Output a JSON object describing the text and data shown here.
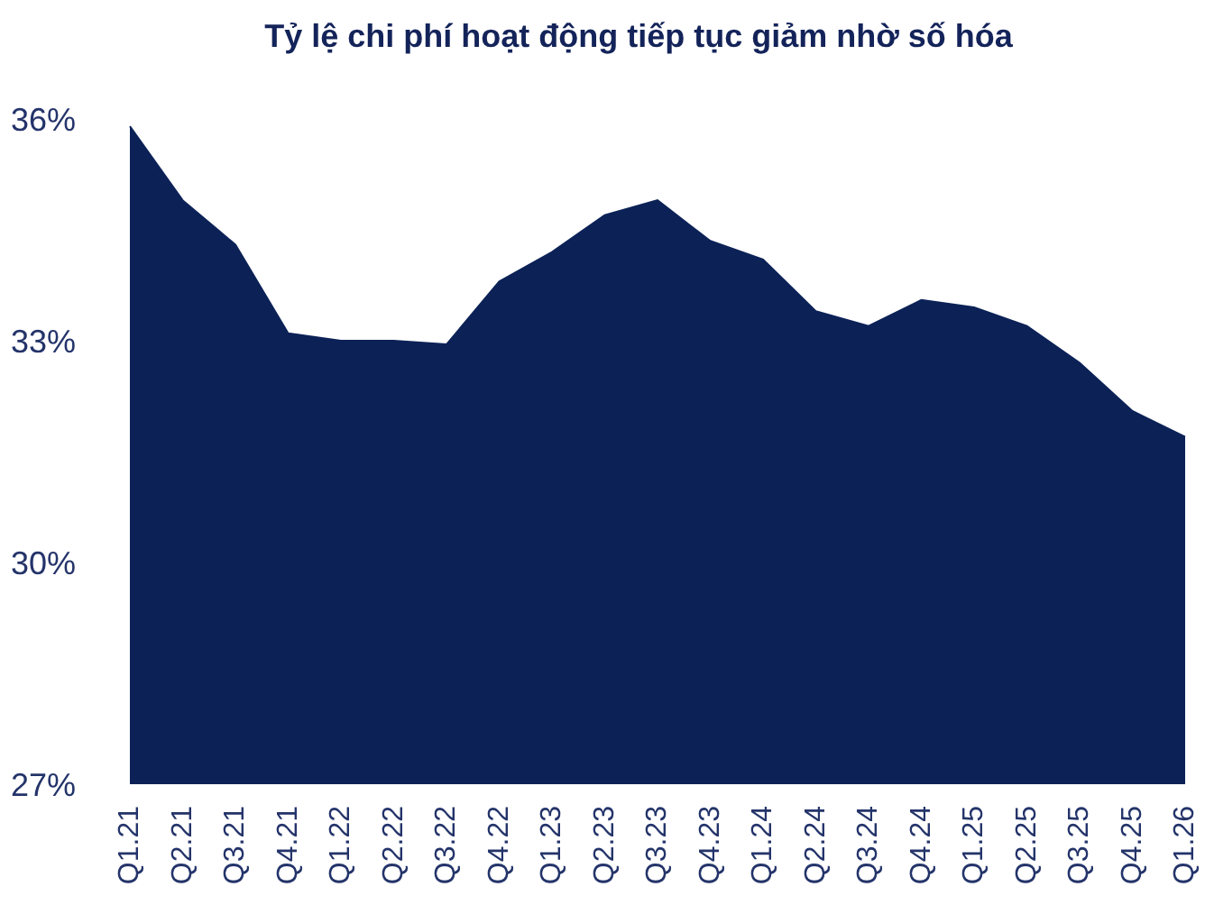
{
  "chart_data": {
    "type": "area",
    "title": "Tỷ lệ chi phí hoạt động tiếp tục giảm nhờ số hóa",
    "categories": [
      "Q1.21",
      "Q2.21",
      "Q3.21",
      "Q4.21",
      "Q1.22",
      "Q2.22",
      "Q3.22",
      "Q4.22",
      "Q1.23",
      "Q2.23",
      "Q3.23",
      "Q4.23",
      "Q1.24",
      "Q2.24",
      "Q3.24",
      "Q4.24",
      "Q1.25",
      "Q2.25",
      "Q3.25",
      "Q4.25",
      "Q1.26"
    ],
    "series": [
      {
        "color": "#0c2257",
        "values": [
          35.9,
          34.9,
          34.3,
          33.1,
          33.0,
          33.0,
          32.95,
          33.8,
          34.2,
          34.7,
          34.9,
          34.35,
          34.1,
          33.4,
          33.2,
          33.55,
          33.45,
          33.2,
          32.7,
          32.05,
          31.7
        ]
      }
    ],
    "ylim": [
      27,
      36
    ],
    "yticks": [
      {
        "value": 27,
        "label": "27%"
      },
      {
        "value": 30,
        "label": "30%"
      },
      {
        "value": 33,
        "label": "33%"
      },
      {
        "value": 36,
        "label": "36%"
      }
    ],
    "grid": false,
    "legend": false
  }
}
